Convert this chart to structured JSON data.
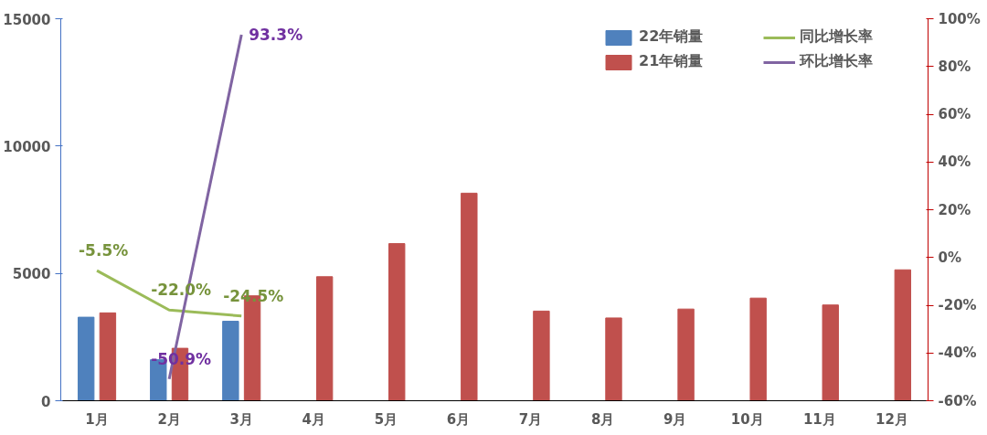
{
  "chart_data": {
    "type": "bar",
    "categories": [
      "1月",
      "2月",
      "3月",
      "4月",
      "5月",
      "6月",
      "7月",
      "8月",
      "9月",
      "10月",
      "11月",
      "12月"
    ],
    "series": [
      {
        "name": "22年销量",
        "color": "#4f81bd",
        "values": [
          3280,
          1610,
          3120,
          null,
          null,
          null,
          null,
          null,
          null,
          null,
          null,
          null
        ]
      },
      {
        "name": "21年销量",
        "color": "#c0504d",
        "values": [
          3450,
          2060,
          4120,
          4870,
          6170,
          8150,
          3520,
          3250,
          3600,
          4030,
          3760,
          5140
        ]
      },
      {
        "name": "同比增长率",
        "type": "line",
        "axis": "y2",
        "color": "#9bbb59",
        "values": [
          -5.5,
          -22.0,
          -24.5,
          null,
          null,
          null,
          null,
          null,
          null,
          null,
          null,
          null
        ],
        "value_labels": [
          "-5.5%",
          "-22.0%",
          "-24.5%",
          null,
          null,
          null,
          null,
          null,
          null,
          null,
          null,
          null
        ]
      },
      {
        "name": "环比增长率",
        "type": "line",
        "axis": "y2",
        "color": "#8064a2",
        "values": [
          null,
          -50.9,
          93.3,
          null,
          null,
          null,
          null,
          null,
          null,
          null,
          null,
          null
        ],
        "value_labels": [
          null,
          "-50.9%",
          "93.3%",
          null,
          null,
          null,
          null,
          null,
          null,
          null,
          null,
          null
        ]
      }
    ],
    "ylim": [
      0,
      15000
    ],
    "yticks": [
      0,
      5000,
      10000,
      15000
    ],
    "y2lim": [
      -60,
      100
    ],
    "y2ticks": [
      {
        "value": -60,
        "label": "-60%"
      },
      {
        "value": -40,
        "label": "-40%"
      },
      {
        "value": -20,
        "label": "-20%"
      },
      {
        "value": 0,
        "label": "0%"
      },
      {
        "value": 20,
        "label": "20%"
      },
      {
        "value": 40,
        "label": "40%"
      },
      {
        "value": 60,
        "label": "60%"
      },
      {
        "value": 80,
        "label": "80%"
      },
      {
        "value": 100,
        "label": "100%"
      }
    ],
    "grid": false,
    "legend": "top right"
  }
}
